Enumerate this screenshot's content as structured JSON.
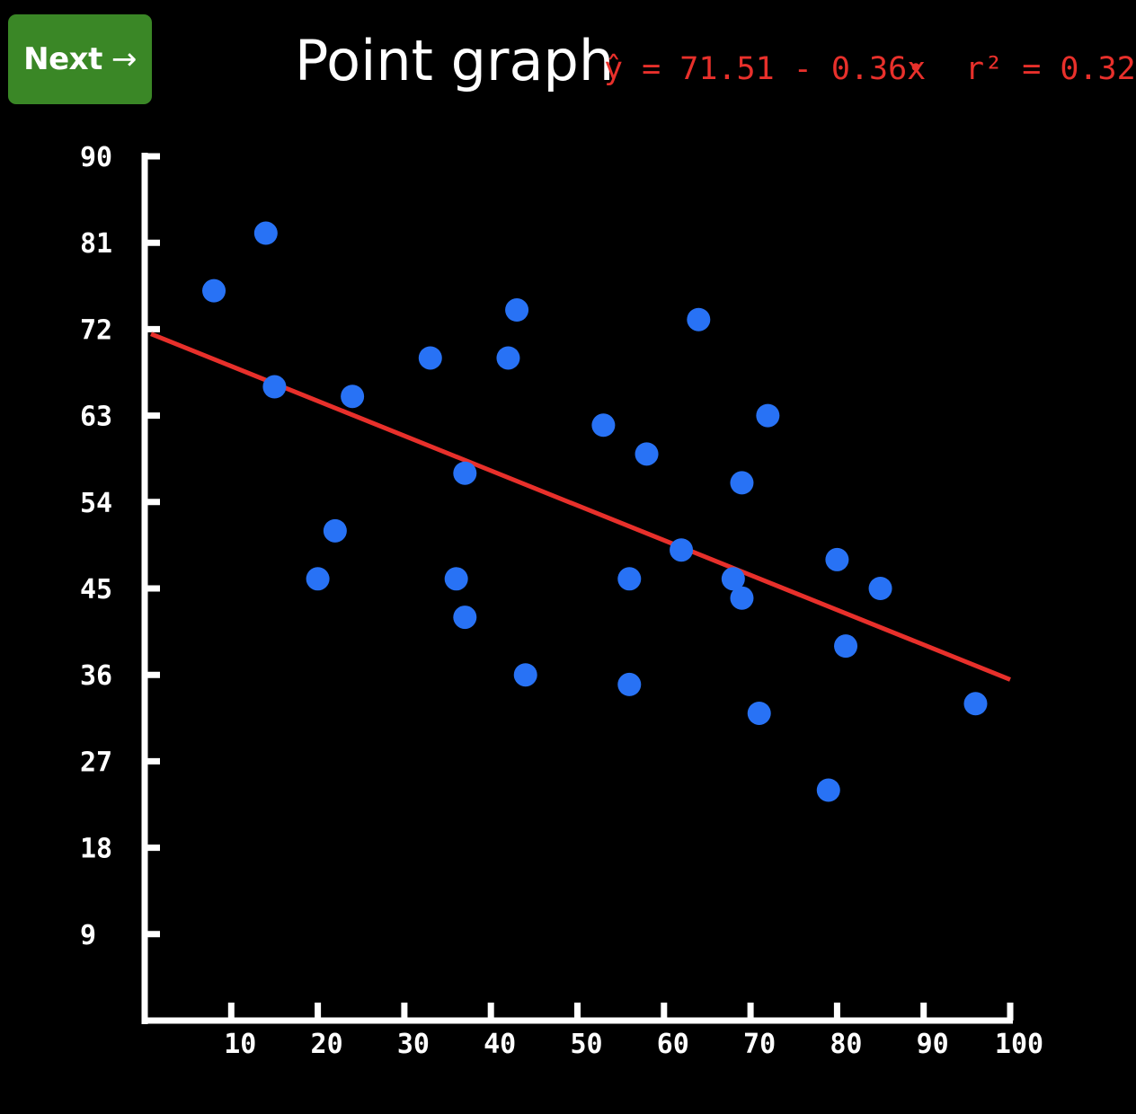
{
  "nav": {
    "next_label": "Next",
    "next_arrow": "→",
    "next_color": "#3a8726"
  },
  "header": {
    "title": "Point graph",
    "equation": "ŷ = 71.51 - 0.36x",
    "separator": "•",
    "r_squared": "r² = 0.32"
  },
  "chart_data": {
    "type": "scatter",
    "title": "Point graph",
    "xlabel": "",
    "ylabel": "",
    "xlim": [
      0,
      100
    ],
    "ylim": [
      0,
      90
    ],
    "x_ticks": [
      10,
      20,
      30,
      40,
      50,
      60,
      70,
      80,
      90,
      100
    ],
    "y_ticks": [
      9,
      18,
      27,
      36,
      45,
      54,
      63,
      72,
      81,
      90
    ],
    "grid": false,
    "points": [
      {
        "x": 8,
        "y": 76
      },
      {
        "x": 14,
        "y": 82
      },
      {
        "x": 15,
        "y": 66
      },
      {
        "x": 20,
        "y": 46
      },
      {
        "x": 22,
        "y": 51
      },
      {
        "x": 24,
        "y": 65
      },
      {
        "x": 33,
        "y": 69
      },
      {
        "x": 36,
        "y": 46
      },
      {
        "x": 37,
        "y": 57
      },
      {
        "x": 37,
        "y": 42
      },
      {
        "x": 42,
        "y": 69
      },
      {
        "x": 43,
        "y": 74
      },
      {
        "x": 44,
        "y": 36
      },
      {
        "x": 53,
        "y": 62
      },
      {
        "x": 56,
        "y": 46
      },
      {
        "x": 56,
        "y": 35
      },
      {
        "x": 58,
        "y": 59
      },
      {
        "x": 62,
        "y": 49
      },
      {
        "x": 64,
        "y": 73
      },
      {
        "x": 68,
        "y": 46
      },
      {
        "x": 69,
        "y": 56
      },
      {
        "x": 69,
        "y": 44
      },
      {
        "x": 71,
        "y": 32
      },
      {
        "x": 72,
        "y": 63
      },
      {
        "x": 79,
        "y": 24
      },
      {
        "x": 80,
        "y": 48
      },
      {
        "x": 81,
        "y": 39
      },
      {
        "x": 85,
        "y": 45
      },
      {
        "x": 96,
        "y": 33
      }
    ],
    "fit": {
      "intercept": 71.51,
      "slope": -0.36,
      "r_squared": 0.32
    },
    "colors": {
      "points": "#2872f5",
      "fit_line": "#e8302b",
      "axes": "#ffffff",
      "background": "#000000"
    }
  }
}
